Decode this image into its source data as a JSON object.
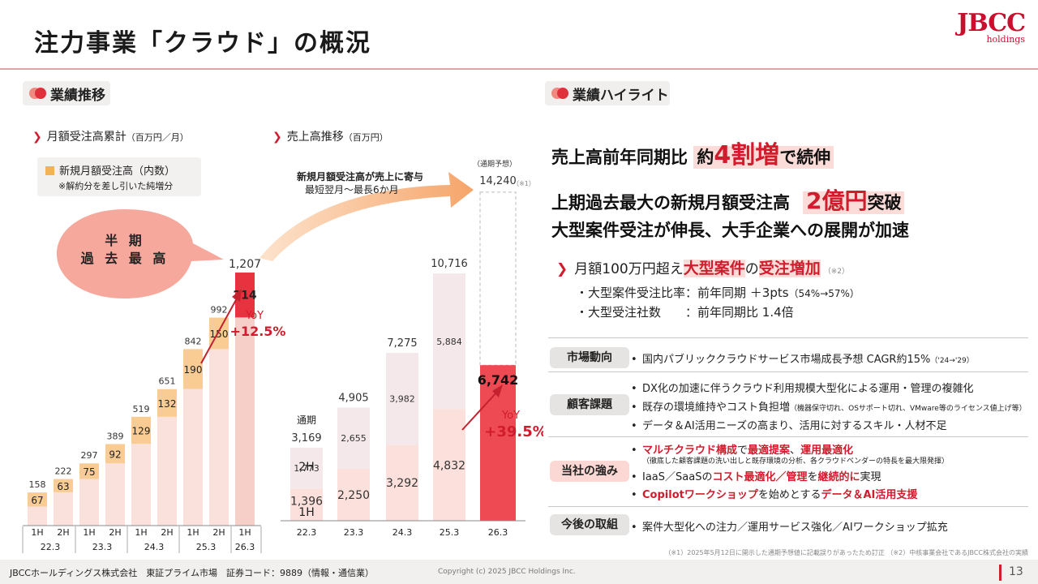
{
  "page": {
    "title": "注力事業「クラウド」の概況",
    "logo_main": "JBCC",
    "logo_sub": "holdings",
    "page_number": "13",
    "footer_company": "JBCCホールディングス株式会社　東証プライム市場　証券コード：9889（情報・通信業）",
    "footer_copyright": "Copyright (c) 2025 JBCC Holdings Inc.",
    "footnote": "（※1）2025年5月12日に開示した通期予想値に記載誤りがあったため訂正 （※2）中核事業会社であるJBCC株式会社の実績"
  },
  "left": {
    "section_title": "業績推移",
    "chart1_title": "月額受注高累計",
    "chart1_unit": "（百万円／月）",
    "legend_label": "新規月額受注高（内数）",
    "legend_note": "※解約分を差し引いた純増分",
    "bubble_text": "半 期\n過 去 最 高",
    "chart2_title": "売上高推移",
    "chart2_unit": "（百万円）",
    "arrow_text_1": "新規月額受注高が売上に寄与",
    "arrow_text_2": "最短翌月～最長6か月"
  },
  "chart_data": [
    {
      "type": "bar",
      "title": "月額受注高累計（百万円／月）",
      "categories": [
        "1H",
        "2H",
        "1H",
        "2H",
        "1H",
        "2H",
        "1H",
        "2H",
        "1H"
      ],
      "groups": [
        "22.3",
        "23.3",
        "24.3",
        "25.3",
        "26.3"
      ],
      "series": [
        {
          "name": "月額受注高累計",
          "values": [
            158,
            222,
            297,
            389,
            519,
            651,
            842,
            992,
            1207
          ]
        },
        {
          "name": "新規月額受注高（内数）",
          "values": [
            67,
            63,
            75,
            92,
            129,
            132,
            190,
            150,
            214
          ]
        }
      ],
      "annotation_label": "YoY",
      "annotation": "+12.5%",
      "ylim": [
        0,
        1300
      ]
    },
    {
      "type": "bar",
      "title": "売上高推移（百万円）",
      "categories": [
        "22.3",
        "23.3",
        "24.3",
        "25.3",
        "26.3"
      ],
      "totals": [
        3169,
        4905,
        7275,
        10716,
        14240
      ],
      "first_half": [
        1396,
        2250,
        3292,
        4832,
        6742
      ],
      "second_half": [
        1773,
        2655,
        3982,
        5884,
        null
      ],
      "labels": {
        "first_total_prefix": "通期",
        "h1": "1H",
        "h2": "2H",
        "forecast_label": "（通期予想）",
        "forecast_note": "（※1）"
      },
      "annotation_label": "YoY",
      "annotation": "+39.5%",
      "ylim": [
        0,
        15500
      ]
    }
  ],
  "right": {
    "section_title": "業績ハイライト",
    "hl1_pre": "売上高前年同期比 ",
    "hl1_a": "約",
    "hl1_num": "4割増",
    "hl1_post": "で続伸",
    "hl2_pre": "上期過去最大の新規月額受注高",
    "hl2_num": "2億円",
    "hl2_post": "突破",
    "hl3": "大型案件受注が伸長、大手企業への展開が加速",
    "big_deal_pre": "月額100万円超え",
    "big_deal_red1": "大型案件",
    "big_deal_mid": "の",
    "big_deal_red2": "受注増加",
    "big_deal_note": "（※2）",
    "bullet1": "・大型案件受注比率：前年同期 ＋3pts",
    "bullet1_small": "（54%→57%）",
    "bullet2": "・大型受注社数　　：前年同期比 1.4倍",
    "rows": {
      "market_label": "市場動向",
      "market_1": "国内パブリッククラウドサービス市場成長予想 CAGR約15%",
      "market_1_small": "（'24→'29）",
      "customer_label": "顧客課題",
      "customer_1": "DX化の加速に伴うクラウド利用規模大型化による運用・管理の複雑化",
      "customer_2": "既存の環境維持やコスト負担増",
      "customer_2_small": "（機器保守切れ、OSサポート切れ、VMware等のライセンス値上げ等）",
      "customer_3": "データ＆AI活用ニーズの高まり、活用に対するスキル・人材不足",
      "strength_label": "当社の強み",
      "strength_1_red1": "マルチクラウド構成",
      "strength_1_mid1": "で",
      "strength_1_red2": "最適提案",
      "strength_1_mid2": "、",
      "strength_1_red3": "運用最適化",
      "strength_1_small": "（徹底した顧客課題の洗い出しと既存環境の分析、各クラウドベンダーの特長を最大限発揮）",
      "strength_2_a": "IaaS／SaaSの",
      "strength_2_red1": "コスト最適化／管理",
      "strength_2_b": "を",
      "strength_2_red2": "継続的に",
      "strength_2_c": "実現",
      "strength_3_red1": "Copilotワークショップ",
      "strength_3_b": "を始めとする",
      "strength_3_red2": "データ＆AI活用支援",
      "future_label": "今後の取組",
      "future_1": "案件大型化への注力／運用サービス強化／AIワークショップ拡充"
    }
  }
}
